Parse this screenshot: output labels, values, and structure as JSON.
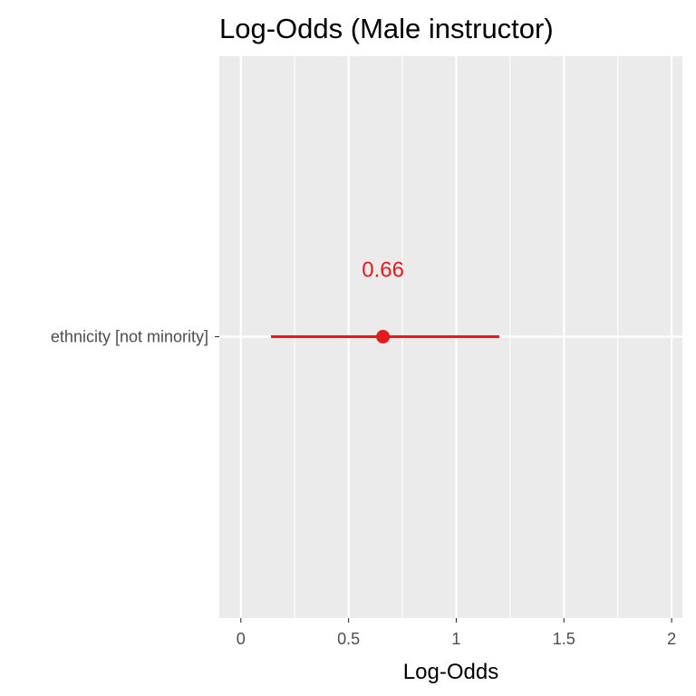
{
  "chart_data": {
    "type": "forest",
    "title": "Log-Odds (Male instructor)",
    "xlabel": "Log-Odds",
    "ylabel": "",
    "xlim": [
      -0.1,
      2.05
    ],
    "x_ticks": [
      0,
      0.5,
      1,
      1.5,
      2
    ],
    "x_tick_labels": [
      "0",
      "0.5",
      "1",
      "1.5",
      "2"
    ],
    "grid": true,
    "categories": [
      "ethnicity [not minority]"
    ],
    "estimates": [
      {
        "term": "ethnicity [not minority]",
        "estimate": 0.66,
        "conf_low": 0.14,
        "conf_high": 1.2,
        "label": "0.66"
      }
    ],
    "colors": {
      "estimate": "#e41a1c",
      "panel_background": "#ebebeb",
      "gridline": "#ffffff",
      "tick_text": "#4d4d4d",
      "title_text": "#000000"
    }
  }
}
